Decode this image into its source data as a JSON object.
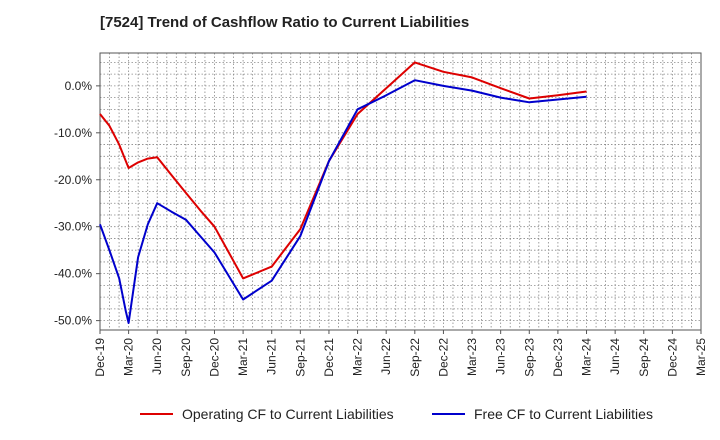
{
  "chart_data": {
    "type": "line",
    "title": "[7524]  Trend of Cashflow Ratio to Current Liabilities",
    "xlabel": "",
    "ylabel": "",
    "x_ticks": [
      "Dec-19",
      "Mar-20",
      "Jun-20",
      "Sep-20",
      "Dec-20",
      "Mar-21",
      "Jun-21",
      "Sep-21",
      "Dec-21",
      "Mar-22",
      "Jun-22",
      "Sep-22",
      "Dec-22",
      "Mar-23",
      "Jun-23",
      "Sep-23",
      "Dec-23",
      "Mar-24",
      "Jun-24",
      "Sep-24",
      "Dec-24",
      "Mar-25"
    ],
    "y_ticks": [
      0,
      -10,
      -20,
      -30,
      -40,
      -50
    ],
    "y_tick_labels": [
      "0.0%",
      "-10.0%",
      "-20.0%",
      "-30.0%",
      "-40.0%",
      "-50.0%"
    ],
    "ylim": [
      -52,
      7
    ],
    "xlim": [
      0,
      21
    ],
    "grid": true,
    "legend_position": "bottom",
    "series": [
      {
        "name": "Operating CF to Current Liabilities",
        "color": "#dd0000",
        "x": [
          0,
          0.33,
          0.67,
          1,
          1.33,
          1.67,
          2,
          2.5,
          3,
          3.5,
          4,
          4.5,
          5,
          6,
          7,
          8,
          9,
          10,
          11,
          12,
          13,
          14,
          15,
          16,
          17
        ],
        "values": [
          -6,
          -8.5,
          -12.5,
          -17.5,
          -16.3,
          -15.5,
          -15.2,
          -19,
          -22.8,
          -26.5,
          -30,
          -35.5,
          -41,
          -38.5,
          -30.5,
          -16,
          -6,
          -0.5,
          5,
          3,
          1.8,
          -0.5,
          -2.7,
          -2,
          -1.2
        ]
      },
      {
        "name": "Free CF to Current Liabilities",
        "color": "#0000cc",
        "x": [
          0,
          0.33,
          0.67,
          0.9,
          1,
          1.33,
          1.67,
          2,
          2.5,
          3,
          3.5,
          4,
          4.5,
          5,
          6,
          7,
          8,
          9,
          10,
          11,
          12,
          13,
          14,
          15,
          16,
          17
        ],
        "values": [
          -29.5,
          -35,
          -41,
          -48,
          -50.5,
          -36.5,
          -29.5,
          -25,
          -26.8,
          -28.5,
          -32,
          -35.5,
          -40.5,
          -45.5,
          -41.5,
          -32,
          -16,
          -5,
          -2,
          1.2,
          0,
          -1,
          -2.5,
          -3.5,
          -2.9,
          -2.3
        ]
      }
    ]
  }
}
